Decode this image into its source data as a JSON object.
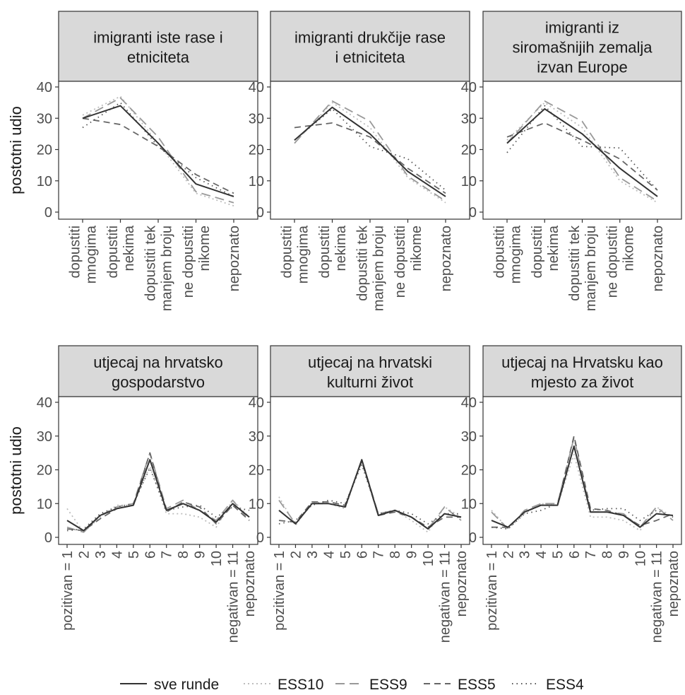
{
  "figure": {
    "y_label": "postotni udio",
    "legend": [
      {
        "name": "sve runde",
        "color": "#333333",
        "dash": "solid"
      },
      {
        "name": "ESS10",
        "color": "#bdbdbd",
        "dash": "dotted-short"
      },
      {
        "name": "ESS9",
        "color": "#999999",
        "dash": "dashed-long"
      },
      {
        "name": "ESS5",
        "color": "#666666",
        "dash": "dashed"
      },
      {
        "name": "ESS4",
        "color": "#555555",
        "dash": "dotted"
      }
    ],
    "colors": {
      "panel_header": "#d9d9d9",
      "panel_border": "#333333",
      "grid": "none"
    }
  },
  "chart_data": [
    {
      "type": "line",
      "title": "imigranti iste rase i etniciteta",
      "ylabel": "postotni udio",
      "ylim": [
        0,
        40
      ],
      "yticks": [
        0,
        10,
        20,
        30,
        40
      ],
      "categories": [
        "dopustiti mnogima",
        "dopustiti nekima",
        "dopustiti tek manjem broju",
        "ne dopustiti nikome",
        "nepoznato"
      ],
      "series": [
        {
          "name": "sve runde",
          "values": [
            30,
            34,
            22,
            9,
            5
          ]
        },
        {
          "name": "ESS10",
          "values": [
            31,
            37,
            22,
            6,
            2
          ]
        },
        {
          "name": "ESS9",
          "values": [
            30,
            36.5,
            24,
            6.5,
            3
          ]
        },
        {
          "name": "ESS5",
          "values": [
            30,
            28,
            21,
            12,
            6
          ]
        },
        {
          "name": "ESS4",
          "values": [
            27,
            35,
            21,
            11,
            5
          ]
        }
      ]
    },
    {
      "type": "line",
      "title": "imigranti drukčije rase i etniciteta",
      "ylabel": "",
      "ylim": [
        0,
        40
      ],
      "yticks": [
        0,
        10,
        20,
        30,
        40
      ],
      "categories": [
        "dopustiti mnogima",
        "dopustiti nekima",
        "dopustiti tek manjem broju",
        "ne dopustiti nikome",
        "nepoznato"
      ],
      "series": [
        {
          "name": "sve runde",
          "values": [
            23,
            33.5,
            25,
            13,
            5
          ]
        },
        {
          "name": "ESS10",
          "values": [
            22,
            35,
            27,
            11,
            3
          ]
        },
        {
          "name": "ESS9",
          "values": [
            22,
            35.5,
            29,
            11.5,
            3.5
          ]
        },
        {
          "name": "ESS5",
          "values": [
            27,
            28.5,
            24,
            14,
            6
          ]
        },
        {
          "name": "ESS4",
          "values": [
            23,
            33,
            21,
            17,
            7
          ]
        }
      ]
    },
    {
      "type": "line",
      "title": "imigranti iz siromašnijih zemalja izvan Europe",
      "ylabel": "",
      "ylim": [
        0,
        40
      ],
      "yticks": [
        0,
        10,
        20,
        30,
        40
      ],
      "categories": [
        "dopustiti mnogima",
        "dopustiti nekima",
        "dopustiti tek manjem broju",
        "ne dopustiti nikome",
        "nepoznato"
      ],
      "series": [
        {
          "name": "sve runde",
          "values": [
            22,
            33,
            25,
            14,
            5
          ]
        },
        {
          "name": "ESS10",
          "values": [
            23,
            35,
            27,
            10,
            3
          ]
        },
        {
          "name": "ESS9",
          "values": [
            22,
            35.5,
            29,
            11,
            3.5
          ]
        },
        {
          "name": "ESS5",
          "values": [
            24,
            28.5,
            23,
            17,
            7
          ]
        },
        {
          "name": "ESS4",
          "values": [
            19,
            34,
            21,
            20.5,
            7
          ]
        }
      ]
    },
    {
      "type": "line",
      "title": "utjecaj na hrvatsko gospodarstvo",
      "ylabel": "postotni udio",
      "ylim": [
        0,
        40
      ],
      "yticks": [
        0,
        10,
        20,
        30,
        40
      ],
      "categories": [
        "pozitivan = 1",
        "2",
        "3",
        "4",
        "5",
        "6",
        "7",
        "8",
        "9",
        "10",
        "negativan = 11",
        "nepoznato"
      ],
      "series": [
        {
          "name": "sve runde",
          "values": [
            5,
            2,
            6.5,
            8.5,
            9.5,
            23,
            8,
            10,
            8,
            4.5,
            10,
            6
          ]
        },
        {
          "name": "ESS10",
          "values": [
            8.5,
            1.5,
            6,
            9.5,
            9.5,
            21,
            7,
            7,
            6,
            3,
            11,
            6
          ]
        },
        {
          "name": "ESS9",
          "values": [
            3,
            1.5,
            6.5,
            9,
            10,
            25,
            8.5,
            11,
            8,
            5,
            11,
            5
          ]
        },
        {
          "name": "ESS5",
          "values": [
            2.5,
            2,
            5.5,
            8.5,
            9.5,
            25,
            7.5,
            10.5,
            9,
            4,
            9.5,
            5
          ]
        },
        {
          "name": "ESS4",
          "values": [
            2,
            2.5,
            7,
            9,
            10,
            20.5,
            8,
            9,
            9.5,
            6,
            9,
            8
          ]
        }
      ]
    },
    {
      "type": "line",
      "title": "utjecaj na hrvatski kulturni život",
      "ylabel": "",
      "ylim": [
        0,
        40
      ],
      "yticks": [
        0,
        10,
        20,
        30,
        40
      ],
      "categories": [
        "pozitivan = 1",
        "2",
        "3",
        "4",
        "5",
        "6",
        "7",
        "8",
        "9",
        "10",
        "negativan = 11",
        "nepoznato"
      ],
      "series": [
        {
          "name": "sve runde",
          "values": [
            8,
            4,
            10,
            10,
            9,
            23,
            6.5,
            8,
            6,
            2.5,
            7,
            6
          ]
        },
        {
          "name": "ESS10",
          "values": [
            12,
            3.5,
            10.5,
            10,
            8.5,
            23,
            7,
            8,
            5,
            1.5,
            9,
            6
          ]
        },
        {
          "name": "ESS9",
          "values": [
            11,
            4,
            10,
            10,
            9,
            23,
            7,
            8,
            6,
            2.5,
            9,
            5
          ]
        },
        {
          "name": "ESS5",
          "values": [
            5,
            4.5,
            10.5,
            10.5,
            9.5,
            22.5,
            6.5,
            7.5,
            6,
            3,
            6,
            6
          ]
        },
        {
          "name": "ESS4",
          "values": [
            4,
            5,
            9.5,
            11,
            10,
            21.5,
            7,
            8,
            7,
            4,
            7,
            7
          ]
        }
      ]
    },
    {
      "type": "line",
      "title": "utjecaj na Hrvatsku kao mjesto za život",
      "ylabel": "",
      "ylim": [
        0,
        40
      ],
      "yticks": [
        0,
        10,
        20,
        30,
        40
      ],
      "categories": [
        "pozitivan = 1",
        "2",
        "3",
        "4",
        "5",
        "6",
        "7",
        "8",
        "9",
        "10",
        "negativan = 11",
        "nepoznato"
      ],
      "series": [
        {
          "name": "sve runde",
          "values": [
            5,
            3,
            7.5,
            9.5,
            9.5,
            27,
            7.5,
            7.5,
            6.5,
            3,
            7,
            6.5
          ]
        },
        {
          "name": "ESS10",
          "values": [
            8,
            2.5,
            7,
            10,
            9.5,
            24.5,
            6,
            6,
            5,
            2,
            9,
            6
          ]
        },
        {
          "name": "ESS9",
          "values": [
            7.5,
            2.5,
            8,
            10,
            10,
            29.5,
            7.5,
            7.5,
            7,
            3,
            9,
            5
          ]
        },
        {
          "name": "ESS5",
          "values": [
            3,
            3,
            7.5,
            9.5,
            9.5,
            30,
            8.5,
            8,
            6.5,
            3.5,
            5,
            7
          ]
        },
        {
          "name": "ESS4",
          "values": [
            3,
            2.5,
            7,
            8,
            10,
            27,
            8,
            8.5,
            8.5,
            5,
            8,
            6
          ]
        }
      ]
    }
  ]
}
